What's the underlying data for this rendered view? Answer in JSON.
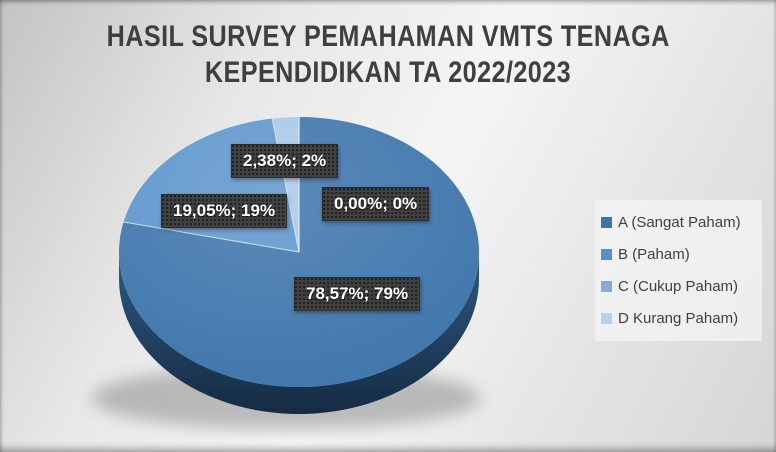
{
  "header": {
    "title_line1": "HASIL SURVEY PEMAHAMAN VMTS TENAGA",
    "title_line2": "KEPENDIDIKAN TA 2022/2023"
  },
  "chart_data": {
    "type": "pie",
    "style": "3d-pie",
    "title": "HASIL SURVEY PEMAHAMAN VMTS TENAGA KEPENDIDIKAN TA 2022/2023",
    "legend_position": "right",
    "start_angle_deg": 0,
    "direction": "clockwise",
    "slices": [
      {
        "name": "A (Sangat Paham)",
        "value_pct": 0.0,
        "data_label": "0,00%; 0%",
        "legend_color": "#3E74A8",
        "face_color": "#4278AF"
      },
      {
        "name": "B (Paham)",
        "value_pct": 78.57,
        "data_label": "78,57%; 79%",
        "legend_color": "#5590C8",
        "face_color": "#4177AD"
      },
      {
        "name": "C (Cukup Paham)",
        "value_pct": 19.05,
        "data_label": "19,05%; 19%",
        "legend_color": "#85ACD8",
        "face_color": "#6097CD"
      },
      {
        "name": "D Kurang Paham)",
        "value_pct": 2.38,
        "data_label": "2,38%; 2%",
        "legend_color": "#B9CFEA",
        "face_color": "#ABC8E9"
      }
    ],
    "colors": {
      "side_top": "#2E5A84",
      "side_bottom": "#152B42",
      "boundary_line": "#DDEBF7",
      "shadow": "#6F6F6F",
      "label_box_bg": "#424242",
      "label_text": "#FFFFFF",
      "title_color": "#3F3F3F",
      "legend_text": "#404040"
    }
  }
}
